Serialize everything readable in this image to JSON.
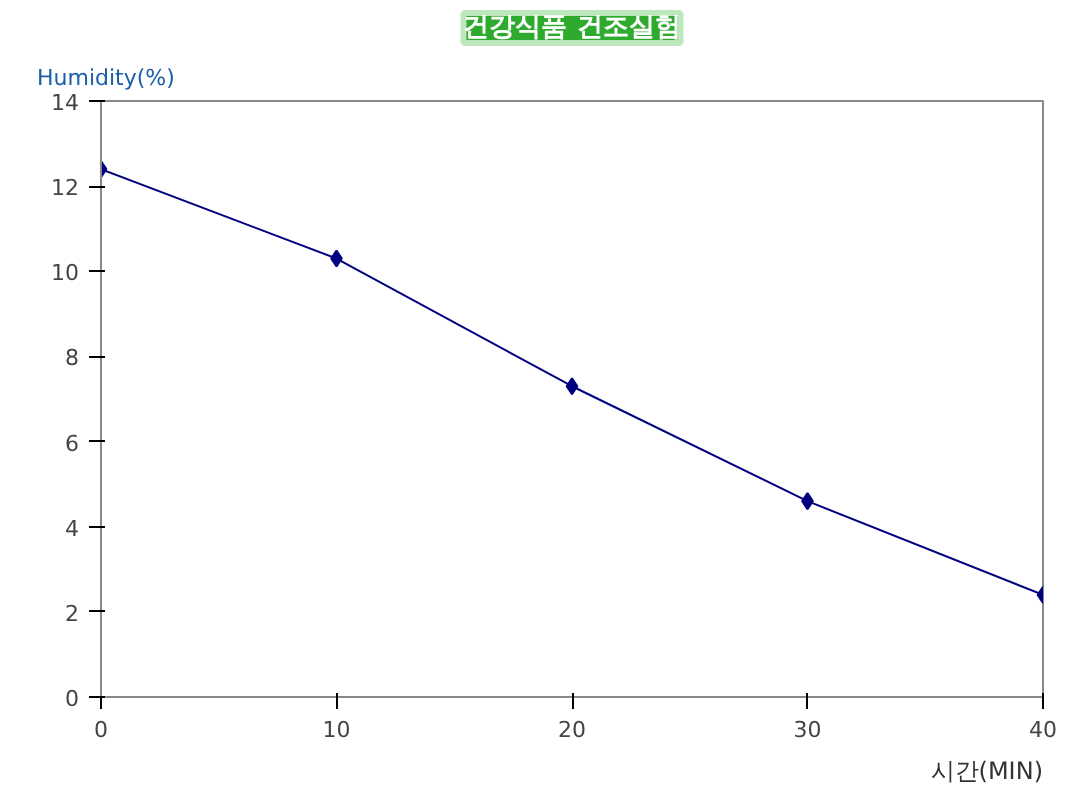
{
  "chart_data": {
    "type": "line",
    "title": "건강식품 건조실험",
    "ylabel": "Humidity(%)",
    "xlabel": "시간(MIN)",
    "x": [
      0,
      10,
      20,
      30,
      40
    ],
    "series": [
      {
        "color": "#000080",
        "values": [
          12.4,
          10.3,
          7.3,
          4.6,
          2.4
        ]
      }
    ],
    "xlim": [
      0,
      40
    ],
    "xticks": [
      0,
      10,
      20,
      30,
      40
    ],
    "ylim": [
      0,
      14
    ],
    "yticks": [
      0,
      2,
      4,
      6,
      8,
      10,
      12,
      14
    ],
    "grid": false,
    "marker": "diamond",
    "line_style": "solid"
  }
}
